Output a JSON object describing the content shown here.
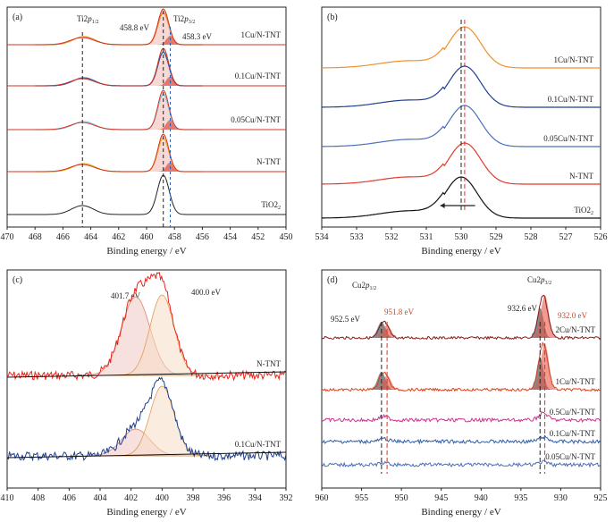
{
  "chart_data": [
    {
      "panel": "(a)",
      "type": "line",
      "xlabel": "Binding energy / eV",
      "xlim": [
        470,
        450
      ],
      "xticks": [
        "470",
        "468",
        "466",
        "464",
        "462",
        "460",
        "458",
        "456",
        "454",
        "452",
        "450"
      ],
      "samples": [
        "1Cu/N-TNT",
        "0.1Cu/N-TNT",
        "0.05Cu/N-TNT",
        "N-TNT",
        "TiO2"
      ],
      "sample_sub": [
        "",
        "",
        "",
        "",
        "2"
      ],
      "annotations": {
        "ti2p12": "Ti2p1/2",
        "ti2p32": "Ti2p3/2",
        "peak_1": "458.8 eV",
        "peak_2": "458.3 eV"
      },
      "series": [
        {
          "name": "1Cu/N-TNT",
          "peak": 458.8,
          "color": "#e8902a"
        },
        {
          "name": "0.1Cu/N-TNT",
          "peak": 458.8,
          "color": "#2f5da8"
        },
        {
          "name": "0.05Cu/N-TNT",
          "peak": 458.8,
          "color": "#88c8e0"
        },
        {
          "name": "N-TNT",
          "peak": 458.8,
          "color": "#e9b52a"
        },
        {
          "name": "TiO2",
          "peak": 458.8,
          "color": "#222222"
        }
      ]
    },
    {
      "panel": "(b)",
      "type": "line",
      "xlabel": "Binding energy / eV",
      "xlim": [
        534,
        526
      ],
      "xticks": [
        "534",
        "533",
        "532",
        "531",
        "530",
        "529",
        "528",
        "527",
        "526"
      ],
      "samples": [
        "1Cu/N-TNT",
        "0.1Cu/N-TNT",
        "0.05Cu/N-TNT",
        "N-TNT",
        "TiO2"
      ],
      "sample_sub": [
        "",
        "",
        "",
        "",
        "2"
      ],
      "series": [
        {
          "name": "1Cu/N-TNT",
          "peak": 529.9,
          "color": "#f0902a"
        },
        {
          "name": "0.1Cu/N-TNT",
          "peak": 529.9,
          "color": "#1f3f8f"
        },
        {
          "name": "0.05Cu/N-TNT",
          "peak": 529.9,
          "color": "#4a6fb8"
        },
        {
          "name": "N-TNT",
          "peak": 529.9,
          "color": "#e23a2a"
        },
        {
          "name": "TiO2",
          "peak": 530.0,
          "color": "#111111"
        }
      ]
    },
    {
      "panel": "(c)",
      "type": "line",
      "xlabel": "Binding energy / eV",
      "xlim": [
        410,
        392
      ],
      "xticks": [
        "410",
        "408",
        "406",
        "404",
        "402",
        "400",
        "398",
        "396",
        "394",
        "392"
      ],
      "samples": [
        "N-TNT",
        "0.1Cu/N-TNT"
      ],
      "annotations": {
        "peak_1": "401.7 eV",
        "peak_2": "400.0 eV"
      },
      "series": [
        {
          "name": "N-TNT",
          "peaks": [
            401.7,
            400.0
          ],
          "color": "#e8261c"
        },
        {
          "name": "0.1Cu/N-TNT",
          "peaks": [
            401.7,
            400.0
          ],
          "color": "#1f3f8f"
        }
      ]
    },
    {
      "panel": "(d)",
      "type": "line",
      "xlabel": "Binding energy / eV",
      "xlim": [
        960,
        925
      ],
      "xticks": [
        "960",
        "955",
        "950",
        "945",
        "940",
        "935",
        "930",
        "925"
      ],
      "samples": [
        "2Cu/N-TNT",
        "1Cu/N-TNT",
        "0.5Cu/N-TNT",
        "0.1Cu/N-TNT",
        "0.05Cu/N-TNT"
      ],
      "annotations": {
        "cu2p12": "Cu2p1/2",
        "cu2p32": "Cu2p3/2",
        "peak_952_5": "952.5 eV",
        "peak_951_8": "951.8 eV",
        "peak_932_6": "932.6 eV",
        "peak_932_0": "932.0 eV"
      },
      "series": [
        {
          "name": "2Cu/N-TNT",
          "color": "#8b1a1a"
        },
        {
          "name": "1Cu/N-TNT",
          "color": "#d9431f"
        },
        {
          "name": "0.5Cu/N-TNT",
          "color": "#d0328f"
        },
        {
          "name": "0.1Cu/N-TNT",
          "color": "#2f5da8"
        },
        {
          "name": "0.05Cu/N-TNT",
          "color": "#4a6fb8"
        }
      ]
    }
  ]
}
